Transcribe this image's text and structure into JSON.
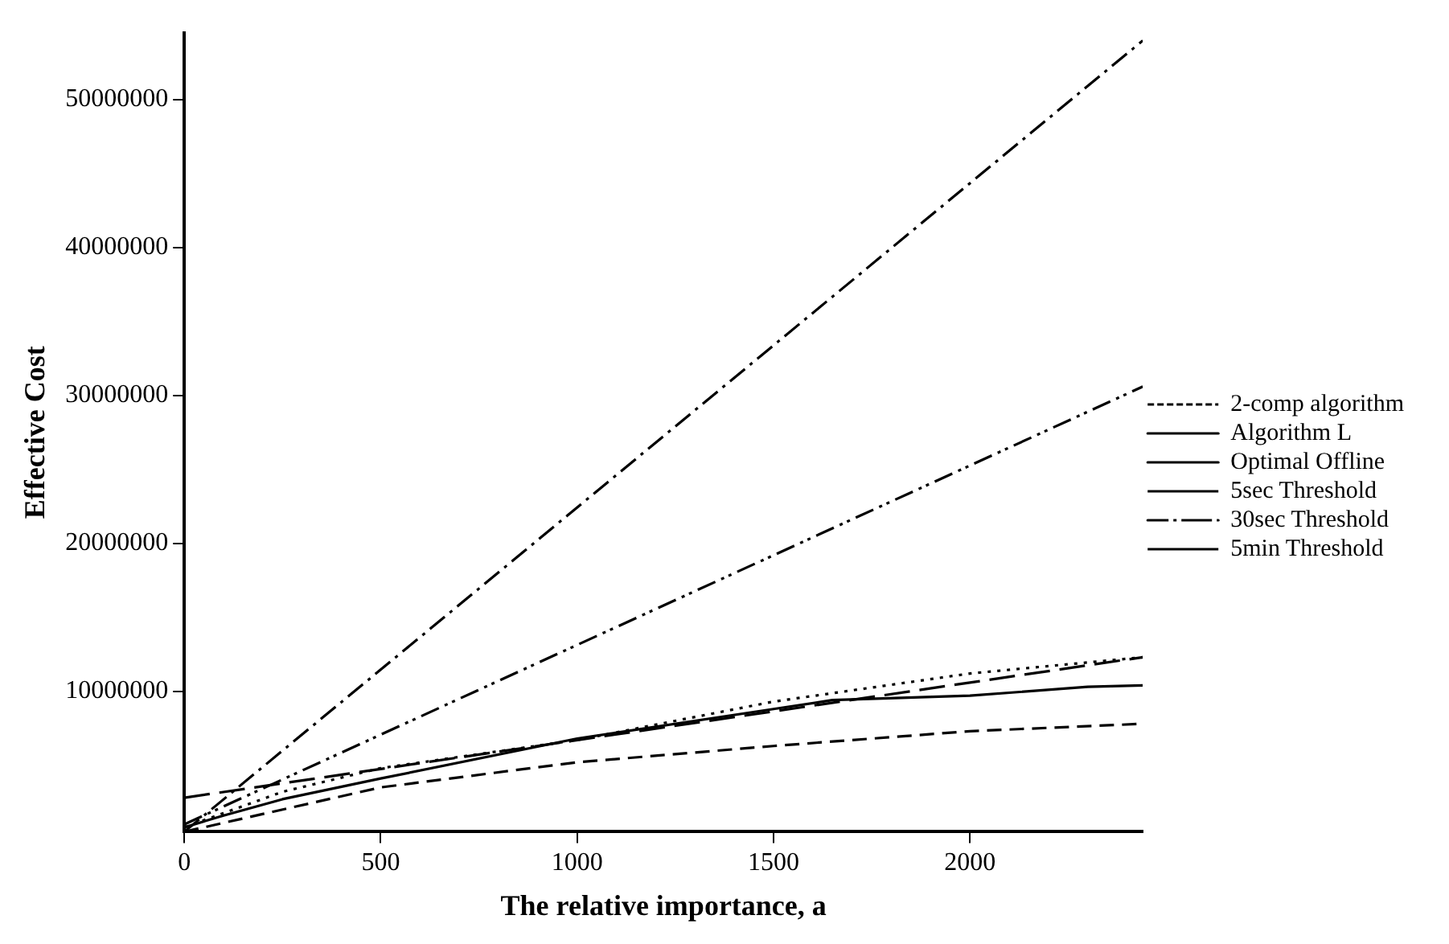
{
  "chart_data": {
    "type": "line",
    "xlabel": "The relative importance, a",
    "ylabel": "Effective Cost",
    "xlim": [
      0,
      2440
    ],
    "xticks": [
      0,
      500,
      1000,
      1500,
      2000
    ],
    "ylim": [
      500000,
      54500000
    ],
    "yticks": [
      10000000,
      20000000,
      30000000,
      40000000,
      50000000
    ],
    "grid": false,
    "legend": "right",
    "marker": "none",
    "series": [
      {
        "name": "2-comp algorithm",
        "color": "#000000",
        "line_style": "dotted",
        "x": [
          0,
          250,
          500,
          1000,
          1500,
          2000,
          2440
        ],
        "values": [
          800000,
          3200000,
          4800000,
          6700000,
          9300000,
          11200000,
          12300000
        ]
      },
      {
        "name": "Algorithm L",
        "color": "#000000",
        "line_style": "solid",
        "x": [
          0,
          100,
          250,
          500,
          1000,
          1500,
          1650,
          2000,
          2300,
          2440
        ],
        "values": [
          800000,
          1600000,
          2700000,
          4100000,
          6800000,
          8800000,
          9400000,
          9700000,
          10300000,
          10400000
        ]
      },
      {
        "name": "Optimal Offline",
        "color": "#000000",
        "line_style": "dashed",
        "x": [
          0,
          500,
          1000,
          1500,
          2000,
          2440
        ],
        "values": [
          500000,
          3500000,
          5200000,
          6300000,
          7300000,
          7800000
        ]
      },
      {
        "name": "5sec Threshold",
        "color": "#000000",
        "line_style": "dashdot",
        "x": [
          0,
          2440
        ],
        "values": [
          500000,
          54000000
        ]
      },
      {
        "name": "30sec Threshold",
        "color": "#000000",
        "line_style": "dashdotdot",
        "x": [
          0,
          2440
        ],
        "values": [
          1000000,
          30600000
        ]
      },
      {
        "name": "5min Threshold",
        "color": "#000000",
        "line_style": "longdash",
        "x": [
          0,
          2440
        ],
        "values": [
          2800000,
          12300000
        ]
      }
    ]
  }
}
